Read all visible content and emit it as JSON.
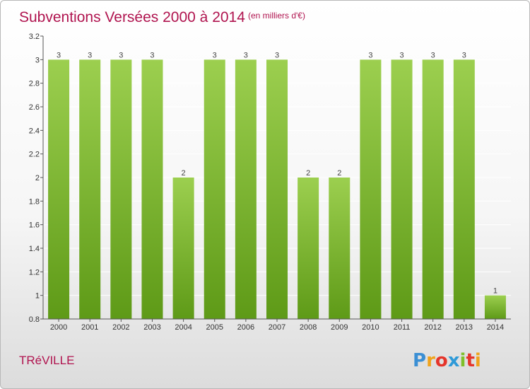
{
  "header": {
    "title": "Subventions Versées 2000 à 2014",
    "unit": "(en milliers d'€)"
  },
  "footer": {
    "commune": "TRéVILLE",
    "logo_letters": [
      "P",
      "r",
      "o",
      "x",
      "i",
      "t",
      "i"
    ],
    "logo_colors": [
      "#3b8fd4",
      "#f0a31c",
      "#e5352b",
      "#2f9ad8",
      "#7fbf2a",
      "#e5352b",
      "#f0a31c"
    ]
  },
  "colors": {
    "bar_top": "#9ccf4f",
    "bar_bottom": "#5e9a17",
    "grid": "#ffffff",
    "axis": "#555555"
  },
  "chart_data": {
    "type": "bar",
    "categories": [
      "2000",
      "2001",
      "2002",
      "2003",
      "2004",
      "2005",
      "2006",
      "2007",
      "2008",
      "2009",
      "2010",
      "2011",
      "2012",
      "2013",
      "2014"
    ],
    "values": [
      3,
      3,
      3,
      3,
      2,
      3,
      3,
      3,
      2,
      2,
      3,
      3,
      3,
      3,
      1
    ],
    "data_labels": [
      "3",
      "3",
      "3",
      "3",
      "2",
      "3",
      "3",
      "3",
      "2",
      "2",
      "3",
      "3",
      "3",
      "3",
      "1"
    ],
    "y_ticks": [
      0.8,
      1,
      1.2,
      1.4,
      1.6,
      1.8,
      2,
      2.2,
      2.4,
      2.6,
      2.8,
      3,
      3.2
    ],
    "y_tick_labels": [
      "0.8",
      "1",
      "1.2",
      "1.4",
      "1.6",
      "1.8",
      "2",
      "2.2",
      "2.4",
      "2.6",
      "2.8",
      "3",
      "3.2"
    ],
    "ylim": [
      0.8,
      3.2
    ],
    "grid": true,
    "legend": "none"
  }
}
